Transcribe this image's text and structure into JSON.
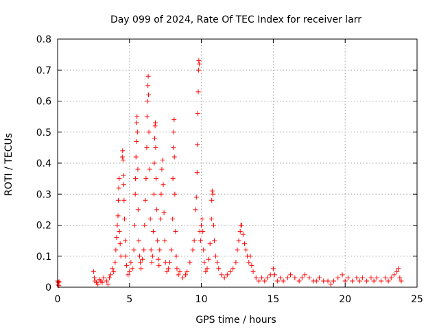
{
  "chart_data": {
    "type": "scatter",
    "title": "Day 099 of 2024, Rate Of TEC Index for receiver larr",
    "xlabel": "GPS time / hours",
    "ylabel": "ROTI / TECUs",
    "xlim": [
      0,
      25
    ],
    "ylim": [
      0,
      0.8
    ],
    "xticks": [
      0,
      5,
      10,
      15,
      20,
      25
    ],
    "yticks": [
      0,
      0.1,
      0.2,
      0.3,
      0.4,
      0.5,
      0.6,
      0.7,
      0.8
    ],
    "ytick_labels": [
      "0",
      "0.1",
      "0.2",
      "0.3",
      "0.4",
      "0.5",
      "0.6",
      "0.7",
      "0.8"
    ],
    "grid": true,
    "marker": "plus",
    "color": "#ff0000",
    "series": [
      {
        "points": [
          [
            0.0,
            0.02
          ],
          [
            0.02,
            0.01
          ],
          [
            0.05,
            0.015
          ],
          [
            0.08,
            0.005
          ],
          [
            0.1,
            0.018
          ],
          [
            2.5,
            0.05
          ],
          [
            2.55,
            0.03
          ],
          [
            2.6,
            0.02
          ],
          [
            2.7,
            0.015
          ],
          [
            2.8,
            0.01
          ],
          [
            2.9,
            0.025
          ],
          [
            3.0,
            0.02
          ],
          [
            3.1,
            0.015
          ],
          [
            3.2,
            0.03
          ],
          [
            3.4,
            0.02
          ],
          [
            3.5,
            0.01
          ],
          [
            3.6,
            0.03
          ],
          [
            3.7,
            0.04
          ],
          [
            3.8,
            0.06
          ],
          [
            3.9,
            0.05
          ],
          [
            4.0,
            0.08
          ],
          [
            4.05,
            0.12
          ],
          [
            4.1,
            0.16
          ],
          [
            4.15,
            0.2
          ],
          [
            4.2,
            0.23
          ],
          [
            4.22,
            0.28
          ],
          [
            4.25,
            0.32
          ],
          [
            4.28,
            0.35
          ],
          [
            4.3,
            0.18
          ],
          [
            4.35,
            0.14
          ],
          [
            4.4,
            0.1
          ],
          [
            4.5,
            0.42
          ],
          [
            4.52,
            0.44
          ],
          [
            4.55,
            0.41
          ],
          [
            4.58,
            0.36
          ],
          [
            4.6,
            0.33
          ],
          [
            4.62,
            0.28
          ],
          [
            4.65,
            0.22
          ],
          [
            4.7,
            0.15
          ],
          [
            4.75,
            0.1
          ],
          [
            4.8,
            0.07
          ],
          [
            4.9,
            0.04
          ],
          [
            5.0,
            0.05
          ],
          [
            5.1,
            0.08
          ],
          [
            5.2,
            0.06
          ],
          [
            5.3,
            0.12
          ],
          [
            5.35,
            0.2
          ],
          [
            5.4,
            0.3
          ],
          [
            5.42,
            0.35
          ],
          [
            5.45,
            0.42
          ],
          [
            5.48,
            0.47
          ],
          [
            5.5,
            0.53
          ],
          [
            5.52,
            0.55
          ],
          [
            5.55,
            0.5
          ],
          [
            5.58,
            0.38
          ],
          [
            5.6,
            0.25
          ],
          [
            5.65,
            0.15
          ],
          [
            5.7,
            0.1
          ],
          [
            5.75,
            0.08
          ],
          [
            5.8,
            0.06
          ],
          [
            5.9,
            0.09
          ],
          [
            6.0,
            0.12
          ],
          [
            6.05,
            0.2
          ],
          [
            6.1,
            0.28
          ],
          [
            6.15,
            0.35
          ],
          [
            6.2,
            0.45
          ],
          [
            6.22,
            0.55
          ],
          [
            6.25,
            0.6
          ],
          [
            6.28,
            0.65
          ],
          [
            6.3,
            0.68
          ],
          [
            6.32,
            0.62
          ],
          [
            6.35,
            0.5
          ],
          [
            6.4,
            0.38
          ],
          [
            6.45,
            0.22
          ],
          [
            6.5,
            0.12
          ],
          [
            6.55,
            0.08
          ],
          [
            6.6,
            0.1
          ],
          [
            6.65,
            0.18
          ],
          [
            6.7,
            0.3
          ],
          [
            6.72,
            0.4
          ],
          [
            6.75,
            0.48
          ],
          [
            6.78,
            0.52
          ],
          [
            6.8,
            0.53
          ],
          [
            6.82,
            0.45
          ],
          [
            6.85,
            0.35
          ],
          [
            6.9,
            0.25
          ],
          [
            6.95,
            0.15
          ],
          [
            7.0,
            0.09
          ],
          [
            7.05,
            0.07
          ],
          [
            7.1,
            0.12
          ],
          [
            7.15,
            0.22
          ],
          [
            7.2,
            0.3
          ],
          [
            7.25,
            0.38
          ],
          [
            7.3,
            0.41
          ],
          [
            7.35,
            0.33
          ],
          [
            7.4,
            0.24
          ],
          [
            7.45,
            0.15
          ],
          [
            7.5,
            0.08
          ],
          [
            7.6,
            0.05
          ],
          [
            7.7,
            0.06
          ],
          [
            7.8,
            0.08
          ],
          [
            7.9,
            0.12
          ],
          [
            8.0,
            0.22
          ],
          [
            8.02,
            0.35
          ],
          [
            8.05,
            0.45
          ],
          [
            8.08,
            0.5
          ],
          [
            8.1,
            0.54
          ],
          [
            8.12,
            0.42
          ],
          [
            8.15,
            0.3
          ],
          [
            8.2,
            0.18
          ],
          [
            8.25,
            0.1
          ],
          [
            8.3,
            0.06
          ],
          [
            8.4,
            0.04
          ],
          [
            8.5,
            0.05
          ],
          [
            8.7,
            0.03
          ],
          [
            8.9,
            0.04
          ],
          [
            9.0,
            0.05
          ],
          [
            9.2,
            0.08
          ],
          [
            9.4,
            0.12
          ],
          [
            9.5,
            0.15
          ],
          [
            9.6,
            0.25
          ],
          [
            9.65,
            0.29
          ],
          [
            9.7,
            0.37
          ],
          [
            9.72,
            0.46
          ],
          [
            9.75,
            0.56
          ],
          [
            9.78,
            0.63
          ],
          [
            9.8,
            0.7
          ],
          [
            9.82,
            0.73
          ],
          [
            9.85,
            0.72
          ],
          [
            9.9,
            0.18
          ],
          [
            9.95,
            0.15
          ],
          [
            10.0,
            0.2
          ],
          [
            10.05,
            0.22
          ],
          [
            10.1,
            0.18
          ],
          [
            10.15,
            0.12
          ],
          [
            10.2,
            0.08
          ],
          [
            10.3,
            0.05
          ],
          [
            10.4,
            0.06
          ],
          [
            10.5,
            0.09
          ],
          [
            10.6,
            0.14
          ],
          [
            10.7,
            0.22
          ],
          [
            10.72,
            0.28
          ],
          [
            10.75,
            0.31
          ],
          [
            10.8,
            0.3
          ],
          [
            10.85,
            0.2
          ],
          [
            10.9,
            0.15
          ],
          [
            11.0,
            0.1
          ],
          [
            11.1,
            0.08
          ],
          [
            11.2,
            0.06
          ],
          [
            11.4,
            0.04
          ],
          [
            11.6,
            0.03
          ],
          [
            11.8,
            0.04
          ],
          [
            12.0,
            0.05
          ],
          [
            12.2,
            0.06
          ],
          [
            12.4,
            0.08
          ],
          [
            12.5,
            0.12
          ],
          [
            12.6,
            0.15
          ],
          [
            12.7,
            0.18
          ],
          [
            12.75,
            0.2
          ],
          [
            12.8,
            0.2
          ],
          [
            12.9,
            0.17
          ],
          [
            13.0,
            0.14
          ],
          [
            13.1,
            0.12
          ],
          [
            13.2,
            0.1
          ],
          [
            13.3,
            0.08
          ],
          [
            13.4,
            0.1
          ],
          [
            13.5,
            0.07
          ],
          [
            13.6,
            0.05
          ],
          [
            13.8,
            0.03
          ],
          [
            14.0,
            0.02
          ],
          [
            14.2,
            0.03
          ],
          [
            14.4,
            0.02
          ],
          [
            14.6,
            0.03
          ],
          [
            14.8,
            0.04
          ],
          [
            15.0,
            0.06
          ],
          [
            15.1,
            0.04
          ],
          [
            15.3,
            0.02
          ],
          [
            15.5,
            0.03
          ],
          [
            15.7,
            0.02
          ],
          [
            16.0,
            0.03
          ],
          [
            16.2,
            0.04
          ],
          [
            16.5,
            0.03
          ],
          [
            16.8,
            0.02
          ],
          [
            17.0,
            0.03
          ],
          [
            17.2,
            0.04
          ],
          [
            17.5,
            0.03
          ],
          [
            17.8,
            0.02
          ],
          [
            18.0,
            0.02
          ],
          [
            18.2,
            0.03
          ],
          [
            18.5,
            0.02
          ],
          [
            18.8,
            0.02
          ],
          [
            19.0,
            0.01
          ],
          [
            19.2,
            0.02
          ],
          [
            19.5,
            0.03
          ],
          [
            19.8,
            0.04
          ],
          [
            20.0,
            0.02
          ],
          [
            20.2,
            0.03
          ],
          [
            20.5,
            0.02
          ],
          [
            20.8,
            0.03
          ],
          [
            21.0,
            0.02
          ],
          [
            21.2,
            0.03
          ],
          [
            21.5,
            0.02
          ],
          [
            21.8,
            0.03
          ],
          [
            22.0,
            0.02
          ],
          [
            22.2,
            0.03
          ],
          [
            22.5,
            0.02
          ],
          [
            22.8,
            0.03
          ],
          [
            23.0,
            0.02
          ],
          [
            23.2,
            0.03
          ],
          [
            23.4,
            0.04
          ],
          [
            23.6,
            0.05
          ],
          [
            23.7,
            0.06
          ],
          [
            23.8,
            0.03
          ],
          [
            23.9,
            0.02
          ]
        ]
      }
    ]
  }
}
